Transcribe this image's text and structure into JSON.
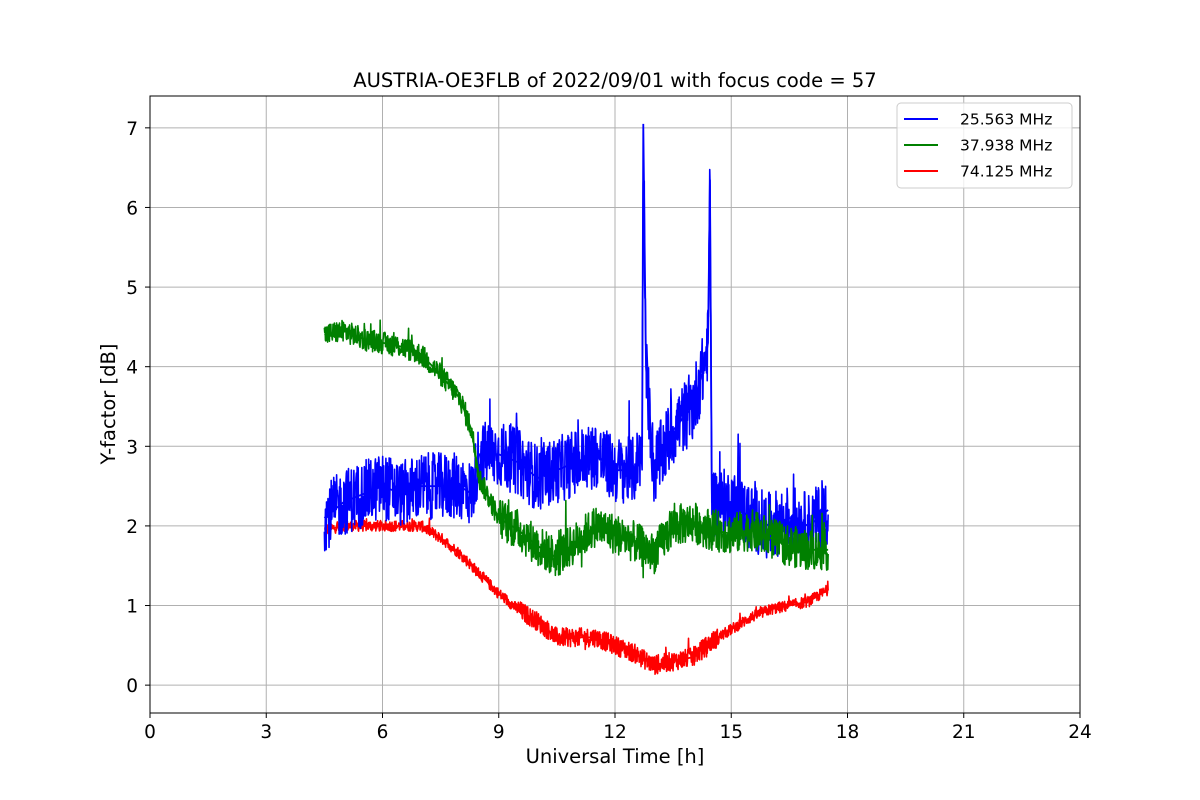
{
  "chart_data": {
    "type": "line",
    "title": "AUSTRIA-OE3FLB of 2022/09/01 with focus code = 57",
    "xlabel": "Universal Time [h]",
    "ylabel": "Y-factor [dB]",
    "xlim": [
      0,
      24
    ],
    "ylim": [
      -0.35,
      7.4
    ],
    "xticks": [
      0,
      3,
      6,
      9,
      12,
      15,
      18,
      21,
      24
    ],
    "yticks": [
      0,
      1,
      2,
      3,
      4,
      5,
      6,
      7
    ],
    "grid": true,
    "legend_position": "top-right",
    "series": [
      {
        "name": "25.563 MHz",
        "color": "#0000ff",
        "x": [
          4.5,
          5.0,
          5.5,
          6.0,
          6.5,
          7.0,
          7.5,
          8.0,
          8.3,
          8.5,
          9.0,
          9.5,
          10.0,
          10.5,
          11.0,
          11.5,
          12.0,
          12.5,
          12.7,
          12.73,
          12.8,
          13.0,
          13.5,
          14.0,
          14.3,
          14.4,
          14.45,
          14.5,
          15.0,
          15.5,
          16.0,
          16.5,
          17.0,
          17.5
        ],
        "y": [
          2.1,
          2.3,
          2.4,
          2.5,
          2.4,
          2.5,
          2.5,
          2.5,
          2.4,
          2.9,
          2.9,
          2.8,
          2.6,
          2.7,
          2.8,
          2.9,
          2.7,
          2.7,
          3.0,
          7.05,
          4.0,
          2.7,
          3.2,
          3.5,
          4.0,
          4.3,
          6.35,
          2.3,
          2.3,
          2.1,
          2.0,
          2.1,
          2.0,
          2.2
        ]
      },
      {
        "name": "37.938 MHz",
        "color": "#008000",
        "x": [
          4.5,
          5.0,
          5.5,
          6.0,
          6.5,
          7.0,
          7.5,
          8.0,
          8.3,
          8.5,
          9.0,
          9.5,
          10.0,
          10.5,
          11.0,
          11.5,
          12.0,
          12.5,
          13.0,
          13.5,
          14.0,
          14.5,
          15.0,
          15.5,
          16.0,
          16.5,
          17.0,
          17.5
        ],
        "y": [
          4.4,
          4.45,
          4.35,
          4.3,
          4.25,
          4.15,
          3.9,
          3.6,
          3.2,
          2.6,
          2.1,
          1.95,
          1.75,
          1.6,
          1.8,
          2.0,
          1.9,
          1.8,
          1.65,
          2.0,
          2.05,
          1.95,
          1.9,
          1.95,
          1.85,
          1.75,
          1.7,
          1.7
        ]
      },
      {
        "name": "74.125 MHz",
        "color": "#ff0000",
        "x": [
          4.5,
          5.0,
          5.5,
          6.0,
          6.5,
          7.0,
          7.5,
          8.0,
          8.5,
          9.0,
          9.5,
          10.0,
          10.5,
          11.0,
          11.5,
          12.0,
          12.5,
          13.0,
          13.5,
          14.0,
          14.5,
          15.0,
          15.5,
          16.0,
          16.5,
          17.0,
          17.5
        ],
        "y": [
          1.95,
          2.0,
          2.0,
          2.0,
          2.0,
          2.0,
          1.85,
          1.65,
          1.4,
          1.15,
          0.95,
          0.8,
          0.6,
          0.6,
          0.6,
          0.5,
          0.4,
          0.25,
          0.3,
          0.35,
          0.55,
          0.7,
          0.85,
          0.95,
          1.0,
          1.05,
          1.2
        ]
      }
    ]
  }
}
